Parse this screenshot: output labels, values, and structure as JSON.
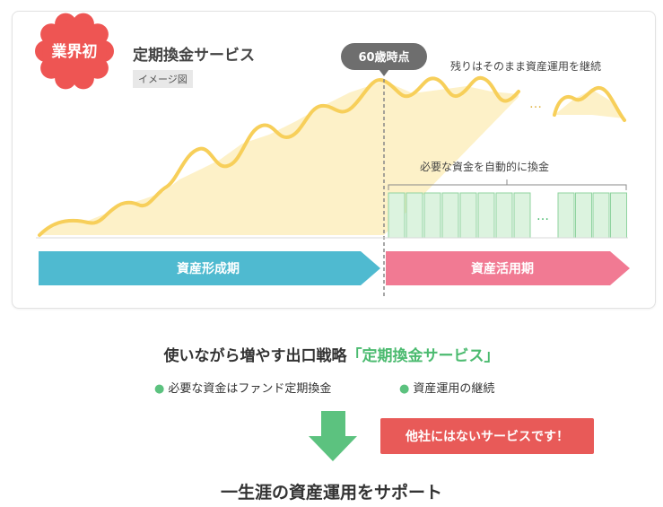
{
  "diagram": {
    "badge": "業界初",
    "title": "定期換金サービス",
    "tag": "イメージ図",
    "milestone": "60歳時点",
    "callout": "残りはそのまま資産運用を継続",
    "ellipsis_top": "…",
    "exchange_note": "必要な資金を自動的に換金",
    "ellipsis_blocks": "…",
    "phase_left": "資産形成期",
    "phase_right": "資産活用期",
    "colors": {
      "curve": "#f7cf5a",
      "curve_fill": "#fdf1c8",
      "phase_left": "#4fbad0",
      "phase_right": "#f17a93",
      "blocks": "#dcf3df",
      "badge": "#ee5553"
    }
  },
  "summary": {
    "heading_main": "使いながら増やす出口戦略",
    "heading_highlight": "「定期換金サービス」",
    "bullets": [
      "必要な資金はファンド定期換金",
      "資産運用の継続"
    ],
    "highlight_box": "他社にはないサービスです！",
    "final_line": "一生涯の資産運用をサポート",
    "icons": [
      "down-arrow-icon",
      "bullet-dot-icon"
    ]
  }
}
